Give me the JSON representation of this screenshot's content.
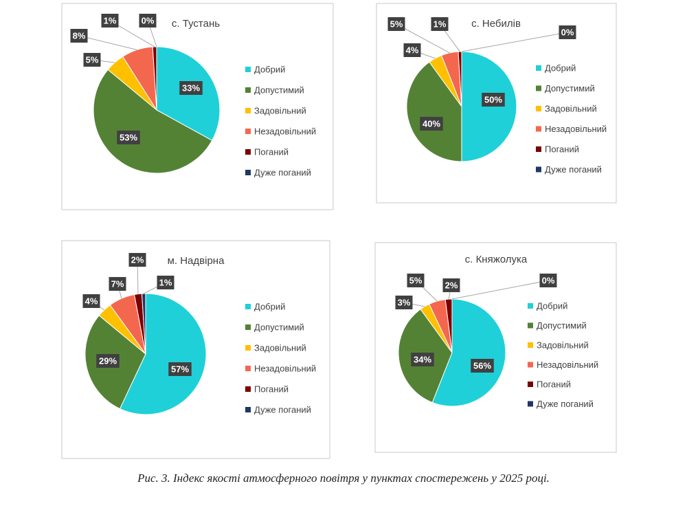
{
  "chart_data": [
    {
      "type": "pie",
      "title": "с. Тустань",
      "categories": [
        "Добрий",
        "Допустимий",
        "Задовільний",
        "Незадовільний",
        "Поганий",
        "Дуже поганий"
      ],
      "values": [
        33,
        53,
        5,
        8,
        1,
        0
      ],
      "value_labels": [
        "33%",
        "53%",
        "5%",
        "8%",
        "1%",
        "0%"
      ],
      "colors": [
        "#1fd0d8",
        "#548235",
        "#ffc000",
        "#f4674f",
        "#7b0000",
        "#1f3864"
      ],
      "legend": "right"
    },
    {
      "type": "pie",
      "title": "с. Небилів",
      "categories": [
        "Добрий",
        "Допустимий",
        "Задовільний",
        "Незадовільний",
        "Поганий",
        "Дуже поганий"
      ],
      "values": [
        50,
        40,
        4,
        5,
        1,
        0
      ],
      "value_labels": [
        "50%",
        "40%",
        "4%",
        "5%",
        "1%",
        "0%"
      ],
      "colors": [
        "#1fd0d8",
        "#548235",
        "#ffc000",
        "#f4674f",
        "#7b0000",
        "#1f3864"
      ],
      "legend": "right"
    },
    {
      "type": "pie",
      "title": "м. Надвірна",
      "categories": [
        "Добрий",
        "Допустимий",
        "Задовільний",
        "Незадовільний",
        "Поганий",
        "Дуже поганий"
      ],
      "values": [
        57,
        29,
        4,
        7,
        2,
        1
      ],
      "value_labels": [
        "57%",
        "29%",
        "4%",
        "7%",
        "2%",
        "1%"
      ],
      "colors": [
        "#1fd0d8",
        "#548235",
        "#ffc000",
        "#f4674f",
        "#7b0000",
        "#1f3864"
      ],
      "legend": "right"
    },
    {
      "type": "pie",
      "title": "с. Княжолука",
      "categories": [
        "Добрий",
        "Допустимий",
        "Задовільний",
        "Незадовільний",
        "Поганий",
        "Дуже поганий"
      ],
      "values": [
        56,
        34,
        3,
        5,
        2,
        0
      ],
      "value_labels": [
        "56%",
        "34%",
        "3%",
        "5%",
        "2%",
        "0%"
      ],
      "colors": [
        "#1fd0d8",
        "#548235",
        "#ffc000",
        "#f4674f",
        "#7b0000",
        "#1f3864"
      ],
      "legend": "right"
    }
  ],
  "caption": "Рис. 3. Індекс якості атмосферного повітря у пунктах спостережень у 2025 році."
}
